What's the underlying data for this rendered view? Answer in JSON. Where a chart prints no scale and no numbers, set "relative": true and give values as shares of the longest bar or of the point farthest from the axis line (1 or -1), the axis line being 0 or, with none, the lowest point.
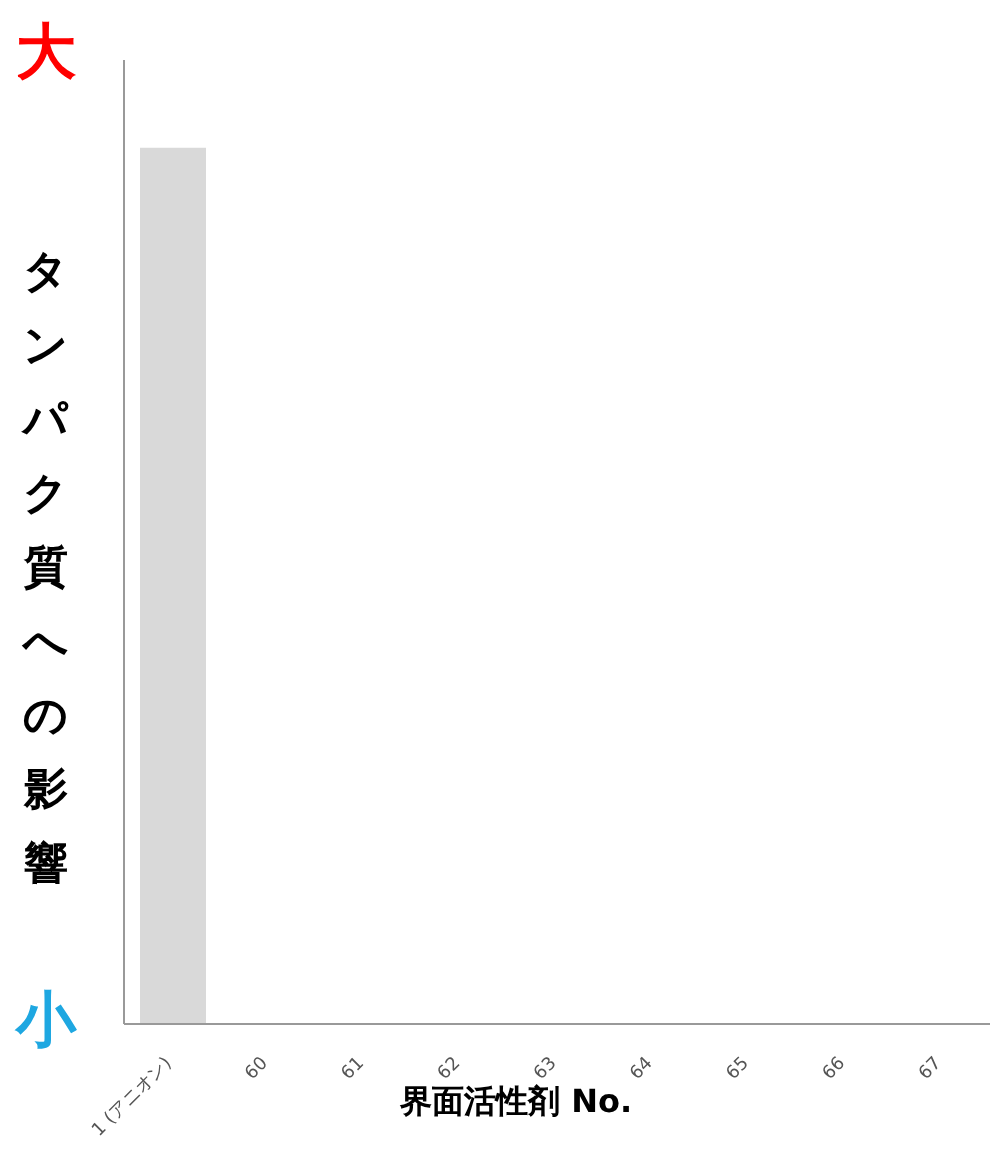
{
  "chart_data": {
    "type": "bar",
    "relative": true,
    "ylabel": "タンパク質への影響",
    "xlabel": "界面活性剤 No.",
    "categories": [
      "1 (アニオン)",
      "60",
      "61",
      "62",
      "63",
      "64",
      "65",
      "66",
      "67"
    ],
    "values": [
      1,
      null,
      null,
      null,
      null,
      null,
      null,
      null,
      null
    ],
    "color": "#d9d9d9",
    "annotations": [
      "大",
      "小"
    ],
    "grid": false,
    "legend": false
  }
}
